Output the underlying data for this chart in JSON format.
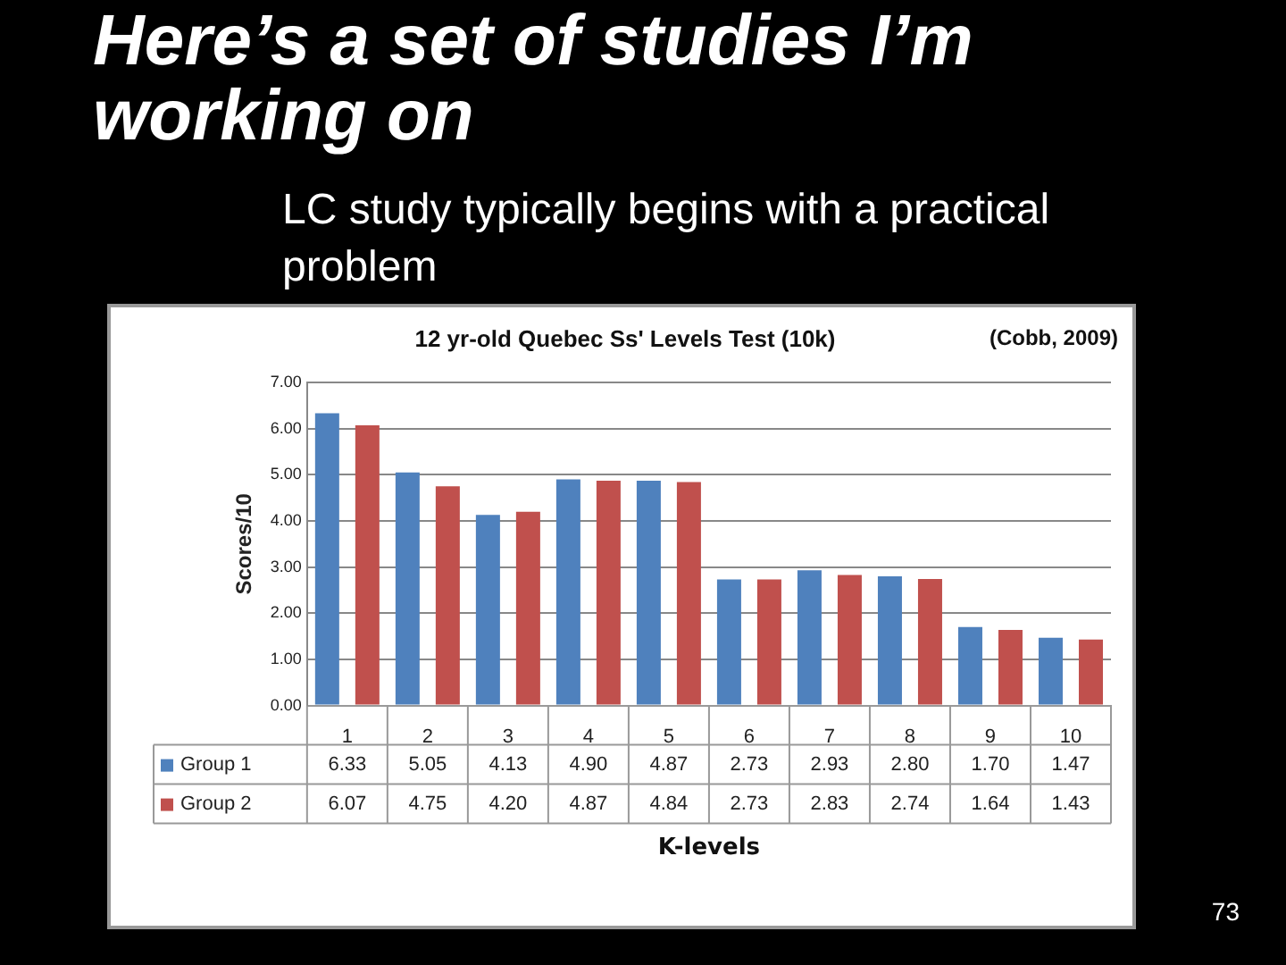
{
  "chart_data": {
    "type": "bar",
    "title": "Here’s a set of studies I’m working on",
    "subtitle": "LC study typically begins with a practical problem",
    "annotations": [
      "12 yr-old Quebec Ss' Levels Test (10k)",
      "(Cobb, 2009)",
      "73"
    ],
    "xlabel": "K-levels",
    "ylabel": "Scores/10",
    "categories": [
      "1",
      "2",
      "3",
      "4",
      "5",
      "6",
      "7",
      "8",
      "9",
      "10"
    ],
    "series": [
      {
        "name": "Group 1",
        "color": "#4f81bd",
        "values": [
          6.33,
          5.05,
          4.13,
          4.9,
          4.87,
          2.73,
          2.93,
          2.8,
          1.7,
          1.47
        ],
        "value_labels": [
          "6.33",
          "5.05",
          "4.13",
          "4.90",
          "4.87",
          "2.73",
          "2.93",
          "2.80",
          "1.70",
          "1.47"
        ]
      },
      {
        "name": "Group 2",
        "color": "#c0504d",
        "values": [
          6.07,
          4.75,
          4.2,
          4.87,
          4.84,
          2.73,
          2.83,
          2.74,
          1.64,
          1.43
        ],
        "value_labels": [
          "6.07",
          "4.75",
          "4.20",
          "4.87",
          "4.84",
          "2.73",
          "2.83",
          "2.74",
          "1.64",
          "1.43"
        ]
      }
    ],
    "ylim": [
      0,
      7
    ],
    "yticks": [
      {
        "value": 0,
        "label": "0.00"
      },
      {
        "value": 1,
        "label": "1.00"
      },
      {
        "value": 2,
        "label": "2.00"
      },
      {
        "value": 3,
        "label": "3.00"
      },
      {
        "value": 4,
        "label": "4.00"
      },
      {
        "value": 5,
        "label": "5.00"
      },
      {
        "value": 6,
        "label": "6.00"
      },
      {
        "value": 7,
        "label": "7.00"
      }
    ],
    "grid": "y",
    "legend": "bottom"
  }
}
